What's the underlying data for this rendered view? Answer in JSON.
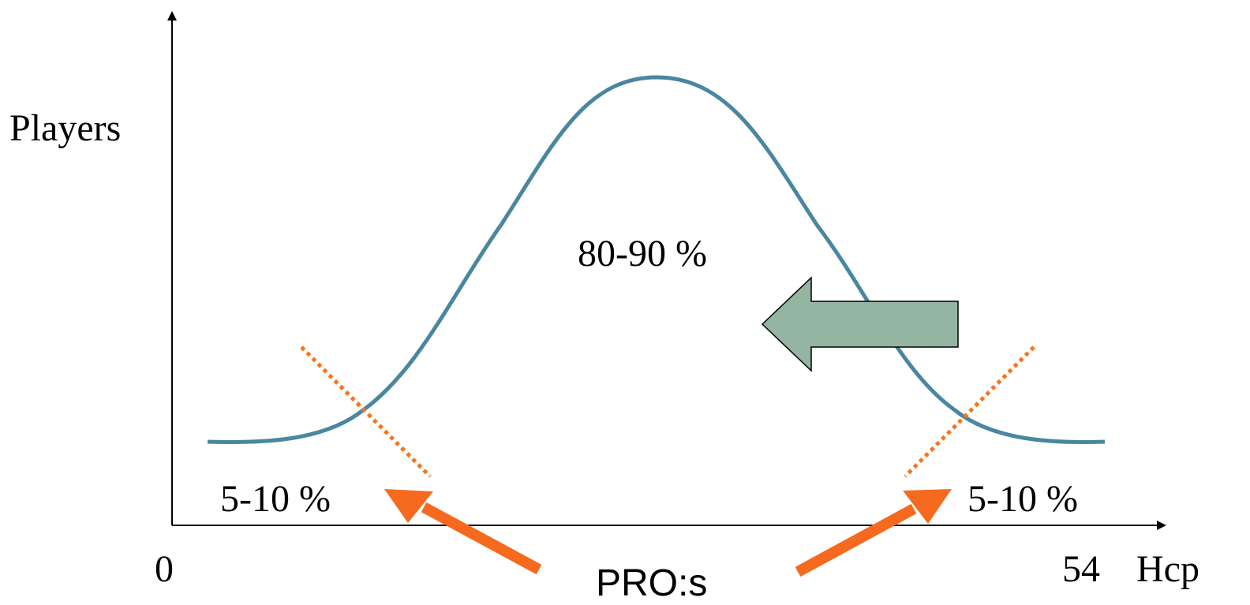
{
  "axes": {
    "y_label": "Players",
    "x_label": "Hcp",
    "x_min_label": "0",
    "x_max_label": "54"
  },
  "regions": {
    "center_label": "80-90 %",
    "left_tail_label": "5-10 %",
    "right_tail_label": "5-10 %"
  },
  "callout": {
    "label": "PRO:s"
  },
  "colors": {
    "curve": "#4A86A0",
    "divider": "#F47521",
    "pro_arrow": "#F56A1E",
    "shift_arrow_fill": "#93B5A2",
    "axis": "#000000"
  },
  "icons": {
    "shift_arrow": "left-block-arrow-icon",
    "pro_arrows": "diagonal-arrow-icon"
  }
}
